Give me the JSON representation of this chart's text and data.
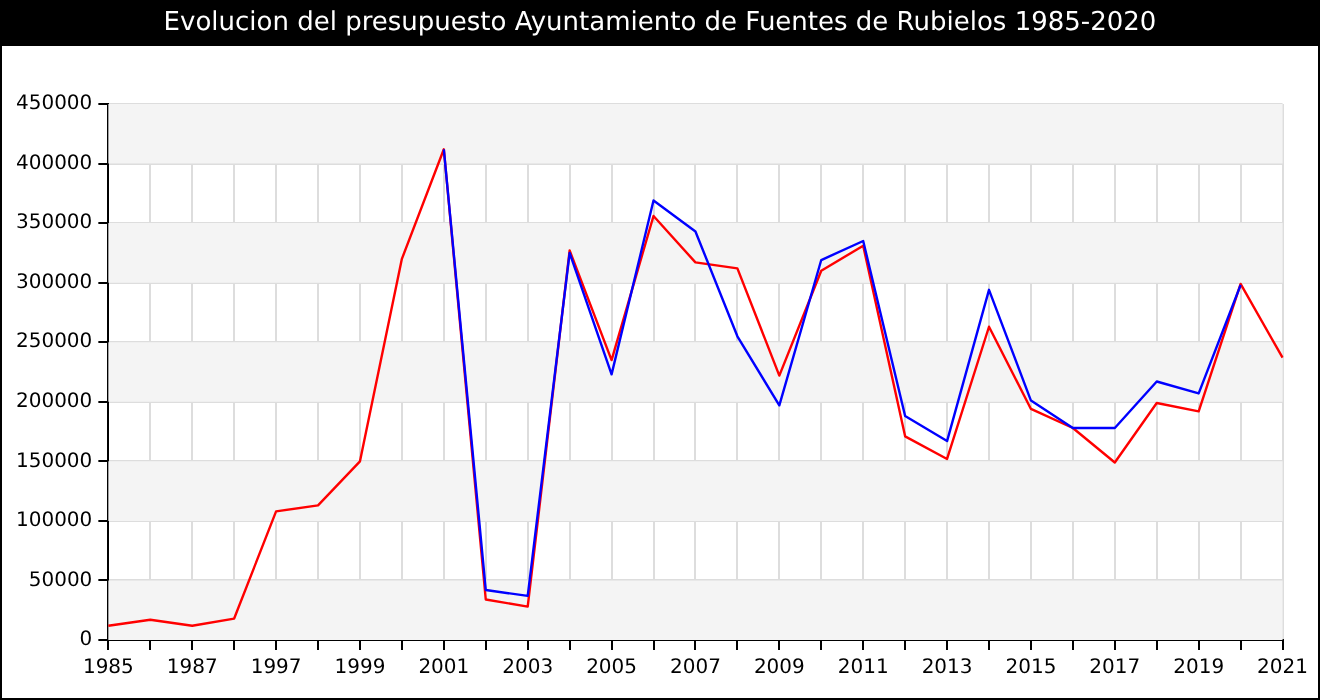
{
  "chart_data": {
    "type": "line",
    "title": "Evolucion del presupuesto Ayuntamiento de Fuentes de Rubielos 1985-2020",
    "categories": [
      "1985",
      null,
      "1987",
      null,
      "1997",
      null,
      "1999",
      null,
      "2001",
      null,
      "2003",
      null,
      "2005",
      null,
      "2007",
      null,
      "2009",
      null,
      "2011",
      null,
      "2013",
      null,
      "2015",
      null,
      "2017",
      null,
      "2019",
      null,
      "2021"
    ],
    "series": [
      {
        "color": "#0000ff",
        "values": [
          null,
          null,
          null,
          null,
          null,
          null,
          null,
          null,
          412000,
          42000,
          37000,
          325000,
          223000,
          369000,
          343000,
          255000,
          197000,
          319000,
          335000,
          188000,
          167000,
          294000,
          201000,
          178000,
          178000,
          217000,
          207000,
          298000,
          null
        ]
      },
      {
        "color": "#ff0000",
        "values": [
          12000,
          17000,
          12000,
          18000,
          108000,
          113000,
          150000,
          320000,
          412000,
          34000,
          28000,
          327000,
          235000,
          356000,
          317000,
          312000,
          222000,
          310000,
          331000,
          171000,
          152000,
          263000,
          194000,
          178000,
          149000,
          199000,
          192000,
          299000,
          237000
        ]
      }
    ],
    "ylim": [
      0,
      450000
    ],
    "yticks": [
      0,
      50000,
      100000,
      150000,
      200000,
      250000,
      300000,
      350000,
      400000,
      450000
    ],
    "grid": true,
    "marker": "none",
    "line_style": "solid"
  }
}
